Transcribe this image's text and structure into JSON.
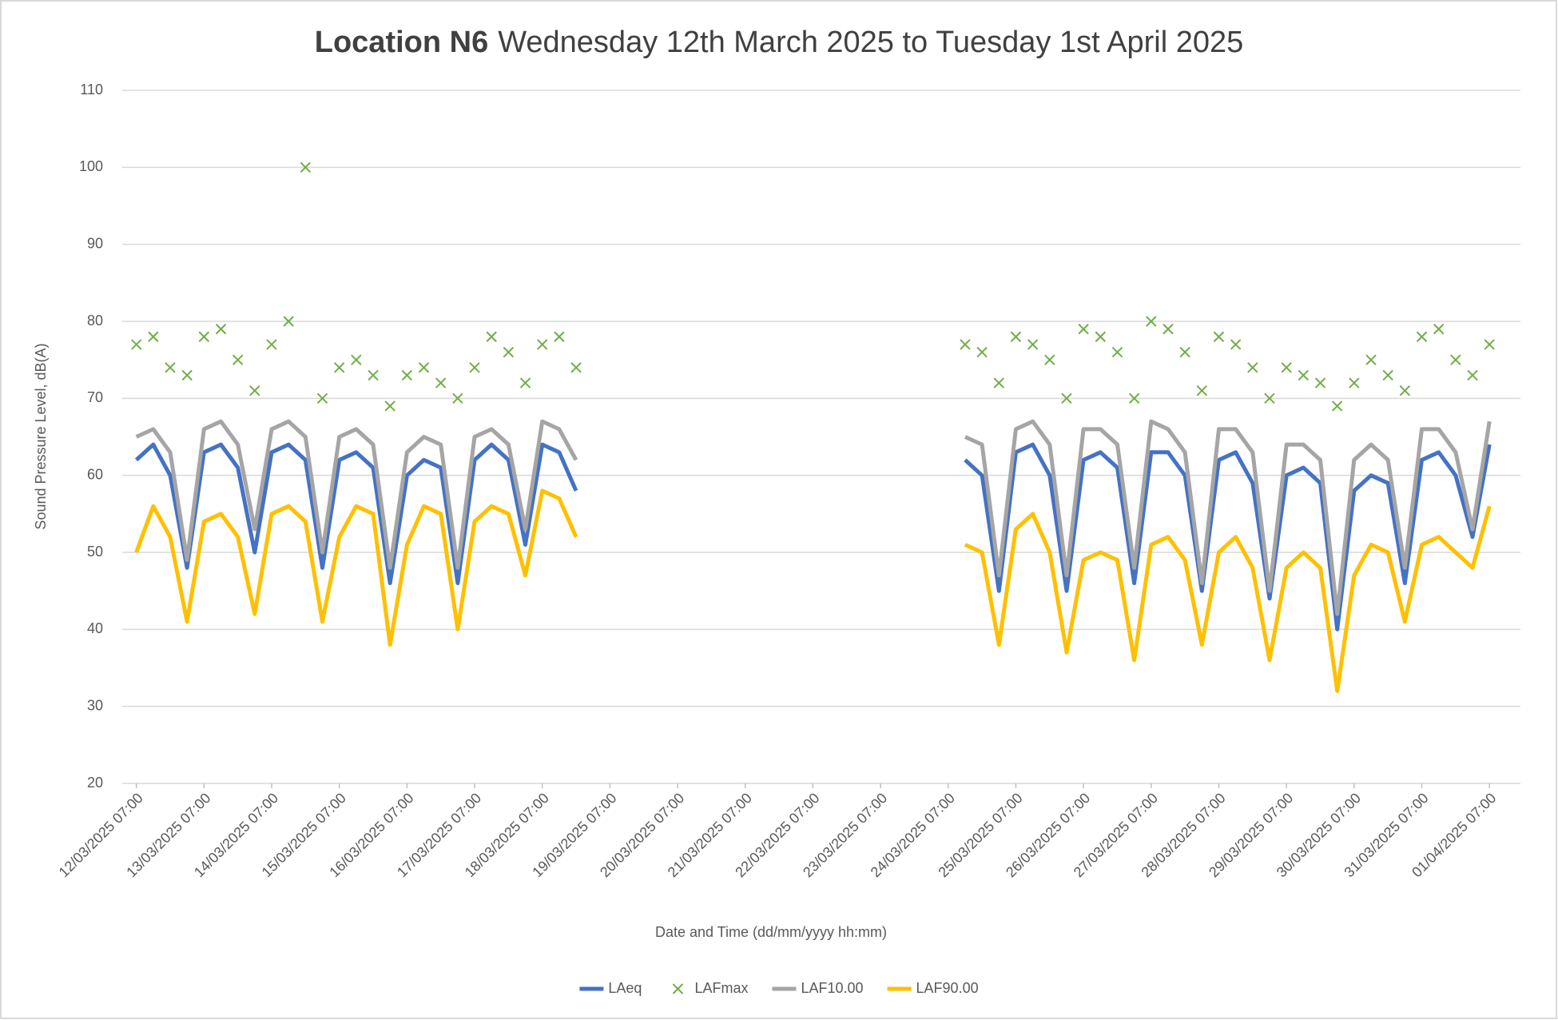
{
  "chart_data": {
    "type": "line",
    "title": "Location N6",
    "subtitle": "Wednesday 12th March 2025 to Tuesday 1st April 2025",
    "xlabel": "Date and Time (dd/mm/yyyy hh:mm)",
    "ylabel": "Sound Pressure Level, dB(A)",
    "x": [
      "12/03/2025 07:00",
      "12/03/2025 13:00",
      "12/03/2025 19:00",
      "13/03/2025 01:00",
      "13/03/2025 07:00",
      "13/03/2025 13:00",
      "13/03/2025 19:00",
      "14/03/2025 01:00",
      "14/03/2025 07:00",
      "14/03/2025 13:00",
      "14/03/2025 19:00",
      "15/03/2025 01:00",
      "15/03/2025 07:00",
      "15/03/2025 13:00",
      "15/03/2025 19:00",
      "16/03/2025 01:00",
      "16/03/2025 07:00",
      "16/03/2025 13:00",
      "16/03/2025 19:00",
      "17/03/2025 01:00",
      "17/03/2025 07:00",
      "17/03/2025 13:00",
      "17/03/2025 19:00",
      "18/03/2025 01:00",
      "18/03/2025 07:00",
      "18/03/2025 13:00",
      "18/03/2025 19:00",
      "21/03/2025 07:00",
      "24/03/2025 13:00",
      "24/03/2025 19:00",
      "25/03/2025 01:00",
      "25/03/2025 07:00",
      "25/03/2025 13:00",
      "25/03/2025 19:00",
      "26/03/2025 01:00",
      "26/03/2025 07:00",
      "26/03/2025 13:00",
      "26/03/2025 19:00",
      "27/03/2025 01:00",
      "27/03/2025 07:00",
      "27/03/2025 13:00",
      "27/03/2025 19:00",
      "28/03/2025 01:00",
      "28/03/2025 07:00",
      "28/03/2025 13:00",
      "28/03/2025 19:00",
      "29/03/2025 01:00",
      "29/03/2025 07:00",
      "29/03/2025 13:00",
      "29/03/2025 19:00",
      "30/03/2025 01:00",
      "30/03/2025 07:00",
      "30/03/2025 13:00",
      "30/03/2025 19:00",
      "31/03/2025 01:00",
      "31/03/2025 07:00",
      "31/03/2025 13:00",
      "31/03/2025 19:00",
      "01/04/2025 01:00",
      "01/04/2025 07:00"
    ],
    "series": [
      {
        "name": "LAeq",
        "type": "line",
        "color": "#4472c4",
        "values": [
          62,
          64,
          60,
          48,
          63,
          64,
          61,
          50,
          63,
          64,
          62,
          48,
          62,
          63,
          61,
          46,
          60,
          62,
          61,
          46,
          62,
          64,
          62,
          51,
          64,
          63,
          58,
          null,
          62,
          60,
          45,
          63,
          64,
          60,
          45,
          62,
          63,
          61,
          46,
          63,
          63,
          60,
          45,
          62,
          63,
          59,
          44,
          60,
          61,
          59,
          40,
          58,
          60,
          59,
          46,
          62,
          63,
          60,
          52,
          64
        ]
      },
      {
        "name": "LAFmax",
        "type": "scatter",
        "color": "#70ad47",
        "values": [
          77,
          78,
          74,
          73,
          78,
          79,
          75,
          71,
          77,
          80,
          100,
          70,
          74,
          75,
          73,
          69,
          73,
          74,
          72,
          70,
          74,
          78,
          76,
          72,
          77,
          78,
          74,
          null,
          77,
          76,
          72,
          78,
          77,
          75,
          70,
          79,
          78,
          76,
          70,
          80,
          79,
          76,
          71,
          78,
          77,
          74,
          70,
          74,
          73,
          72,
          69,
          72,
          75,
          73,
          71,
          78,
          79,
          75,
          73,
          77
        ]
      },
      {
        "name": "LAF10.00",
        "type": "line",
        "color": "#a5a5a5",
        "values": [
          65,
          66,
          63,
          49,
          66,
          67,
          64,
          53,
          66,
          67,
          65,
          50,
          65,
          66,
          64,
          48,
          63,
          65,
          64,
          48,
          65,
          66,
          64,
          53,
          67,
          66,
          62,
          null,
          65,
          64,
          47,
          66,
          67,
          64,
          47,
          66,
          66,
          64,
          48,
          67,
          66,
          63,
          46,
          66,
          66,
          63,
          45,
          64,
          64,
          62,
          42,
          62,
          64,
          62,
          48,
          66,
          66,
          63,
          53,
          67
        ]
      },
      {
        "name": "LAF90.00",
        "type": "line",
        "color": "#ffc000",
        "values": [
          50,
          56,
          52,
          41,
          54,
          55,
          52,
          42,
          55,
          56,
          54,
          41,
          52,
          56,
          55,
          38,
          51,
          56,
          55,
          40,
          54,
          56,
          55,
          47,
          58,
          57,
          52,
          null,
          51,
          50,
          38,
          53,
          55,
          50,
          37,
          49,
          50,
          49,
          36,
          51,
          52,
          49,
          38,
          50,
          52,
          48,
          36,
          48,
          50,
          48,
          32,
          47,
          51,
          50,
          41,
          51,
          52,
          50,
          48,
          56
        ]
      }
    ],
    "xlim": [
      "12/03/2025 02:00",
      "01/04/2025 18:00"
    ],
    "xticks": [
      "12/03/2025 07:00",
      "13/03/2025 07:00",
      "14/03/2025 07:00",
      "15/03/2025 07:00",
      "16/03/2025 07:00",
      "17/03/2025 07:00",
      "18/03/2025 07:00",
      "19/03/2025 07:00",
      "20/03/2025 07:00",
      "21/03/2025 07:00",
      "22/03/2025 07:00",
      "23/03/2025 07:00",
      "24/03/2025 07:00",
      "25/03/2025 07:00",
      "26/03/2025 07:00",
      "27/03/2025 07:00",
      "28/03/2025 07:00",
      "29/03/2025 07:00",
      "30/03/2025 07:00",
      "31/03/2025 07:00",
      "01/04/2025 07:00"
    ],
    "ylim": [
      20,
      110
    ],
    "yticks": [
      20,
      30,
      40,
      50,
      60,
      70,
      80,
      90,
      100,
      110
    ],
    "grid": true,
    "legend": "bottom"
  }
}
